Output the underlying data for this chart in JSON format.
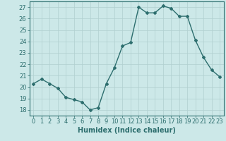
{
  "x": [
    0,
    1,
    2,
    3,
    4,
    5,
    6,
    7,
    8,
    9,
    10,
    11,
    12,
    13,
    14,
    15,
    16,
    17,
    18,
    19,
    20,
    21,
    22,
    23
  ],
  "y": [
    20.3,
    20.7,
    20.3,
    19.9,
    19.1,
    18.9,
    18.7,
    18.0,
    18.2,
    20.3,
    21.7,
    23.6,
    23.9,
    27.0,
    26.5,
    26.5,
    27.1,
    26.9,
    26.2,
    26.2,
    24.1,
    22.6,
    21.5,
    20.9
  ],
  "xlabel": "Humidex (Indice chaleur)",
  "ylim": [
    17.5,
    27.5
  ],
  "xlim": [
    -0.5,
    23.5
  ],
  "yticks": [
    18,
    19,
    20,
    21,
    22,
    23,
    24,
    25,
    26,
    27
  ],
  "xticks": [
    0,
    1,
    2,
    3,
    4,
    5,
    6,
    7,
    8,
    9,
    10,
    11,
    12,
    13,
    14,
    15,
    16,
    17,
    18,
    19,
    20,
    21,
    22,
    23
  ],
  "line_color": "#2d6e6e",
  "marker": "D",
  "marker_size": 2.0,
  "line_width": 1.0,
  "bg_color": "#cce8e8",
  "grid_color": "#b0cfcf",
  "axis_color": "#2d6e6e",
  "tick_color": "#2d6e6e",
  "label_fontsize": 7,
  "tick_fontsize": 6
}
